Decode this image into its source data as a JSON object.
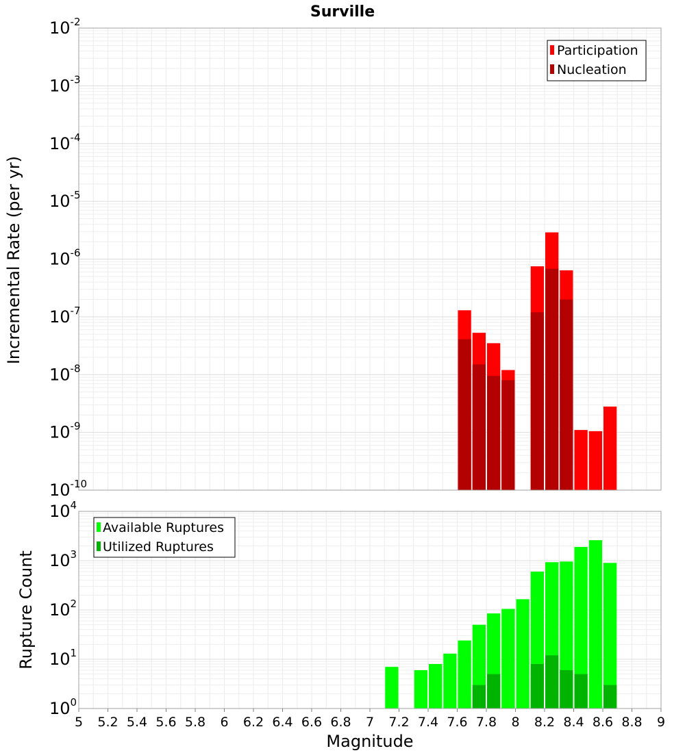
{
  "chart_data": [
    {
      "type": "bar",
      "title": "Surville",
      "xlabel": "",
      "ylabel": "Incremental Rate (per yr)",
      "yscale": "log",
      "xlim": [
        5,
        9
      ],
      "ylim": [
        1e-10,
        0.01
      ],
      "ytick_labels": [
        {
          "base": "10",
          "exp": "-2"
        },
        {
          "base": "10",
          "exp": "-3"
        },
        {
          "base": "10",
          "exp": "-4"
        },
        {
          "base": "10",
          "exp": "-5"
        },
        {
          "base": "10",
          "exp": "-6"
        },
        {
          "base": "10",
          "exp": "-7"
        },
        {
          "base": "10",
          "exp": "-8"
        },
        {
          "base": "10",
          "exp": "-9"
        },
        {
          "base": "10",
          "exp": "-10"
        }
      ],
      "grid": true,
      "legend_position": "top-right",
      "x": [
        7.65,
        7.75,
        7.85,
        7.95,
        8.15,
        8.25,
        8.35,
        8.45,
        8.55,
        8.65
      ],
      "series": [
        {
          "name": "Participation",
          "color": "#ff0000",
          "values": [
            1.3e-07,
            5.3e-08,
            3.5e-08,
            1.2e-08,
            7.5e-07,
            2.9e-06,
            6.4e-07,
            1.1e-09,
            1.05e-09,
            2.8e-09
          ]
        },
        {
          "name": "Nucleation",
          "color": "#b30000",
          "values": [
            4.1e-08,
            1.5e-08,
            9.5e-09,
            8e-09,
            1.2e-07,
            6.8e-07,
            2e-07,
            null,
            null,
            null
          ]
        }
      ]
    },
    {
      "type": "bar",
      "xlabel": "Magnitude",
      "ylabel": "Rupture Count",
      "yscale": "log",
      "xlim": [
        5,
        9
      ],
      "ylim": [
        1,
        10000
      ],
      "xticks": [
        "5",
        "5.2",
        "5.4",
        "5.6",
        "5.8",
        "6",
        "6.2",
        "6.4",
        "6.6",
        "6.8",
        "7",
        "7.2",
        "7.4",
        "7.6",
        "7.8",
        "8",
        "8.2",
        "8.4",
        "8.6",
        "8.8",
        "9"
      ],
      "ytick_labels": [
        {
          "base": "10",
          "exp": "4"
        },
        {
          "base": "10",
          "exp": "3"
        },
        {
          "base": "10",
          "exp": "2"
        },
        {
          "base": "10",
          "exp": "1"
        },
        {
          "base": "10",
          "exp": "0"
        }
      ],
      "grid": true,
      "legend_position": "top-left",
      "x": [
        7.15,
        7.35,
        7.45,
        7.55,
        7.65,
        7.75,
        7.85,
        7.95,
        8.05,
        8.15,
        8.25,
        8.35,
        8.45,
        8.55,
        8.65
      ],
      "series": [
        {
          "name": "Available Ruptures",
          "color": "#00ff00",
          "values": [
            7,
            6,
            8,
            13,
            24,
            50,
            85,
            105,
            165,
            600,
            930,
            960,
            1900,
            2600,
            900
          ]
        },
        {
          "name": "Utilized Ruptures",
          "color": "#00b300",
          "values": [
            null,
            null,
            null,
            null,
            1,
            3,
            5,
            1,
            null,
            8,
            12,
            6,
            5,
            1,
            3
          ]
        }
      ]
    }
  ]
}
